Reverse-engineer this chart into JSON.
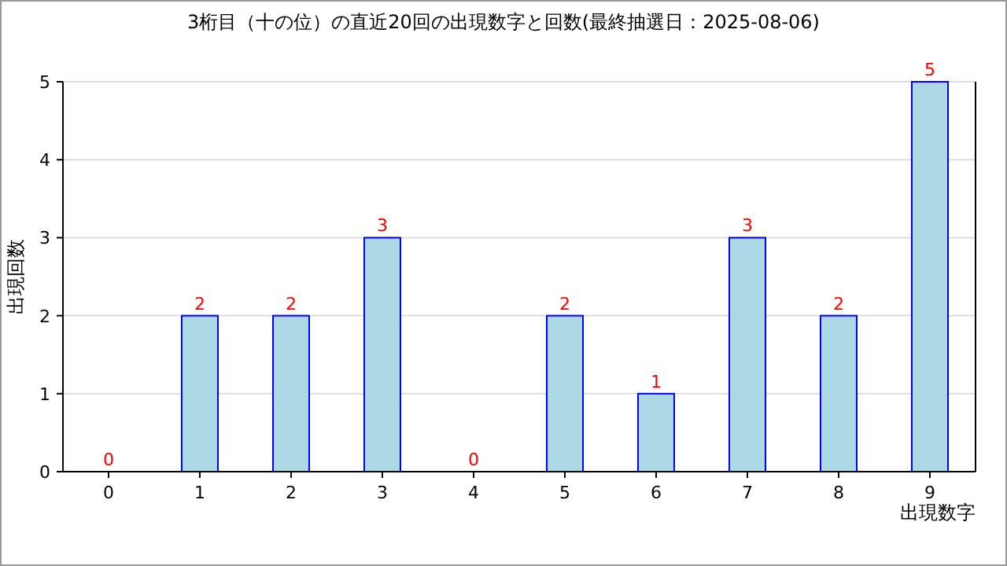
{
  "chart_data": {
    "type": "bar",
    "title": "3桁目（十の位）の直近20回の出現数字と回数(最終抽選日：2025-08-06)",
    "xlabel": "出現数字",
    "ylabel": "出現回数",
    "categories": [
      "0",
      "1",
      "2",
      "3",
      "4",
      "5",
      "6",
      "7",
      "8",
      "9"
    ],
    "series": [
      {
        "color": "#add8e6",
        "values": [
          0,
          2,
          2,
          3,
          0,
          2,
          1,
          3,
          2,
          5
        ]
      }
    ],
    "ylim": [
      0,
      5
    ],
    "yticks": [
      0,
      1,
      2,
      3,
      4,
      5
    ],
    "grid": "y",
    "data_labels": true
  }
}
